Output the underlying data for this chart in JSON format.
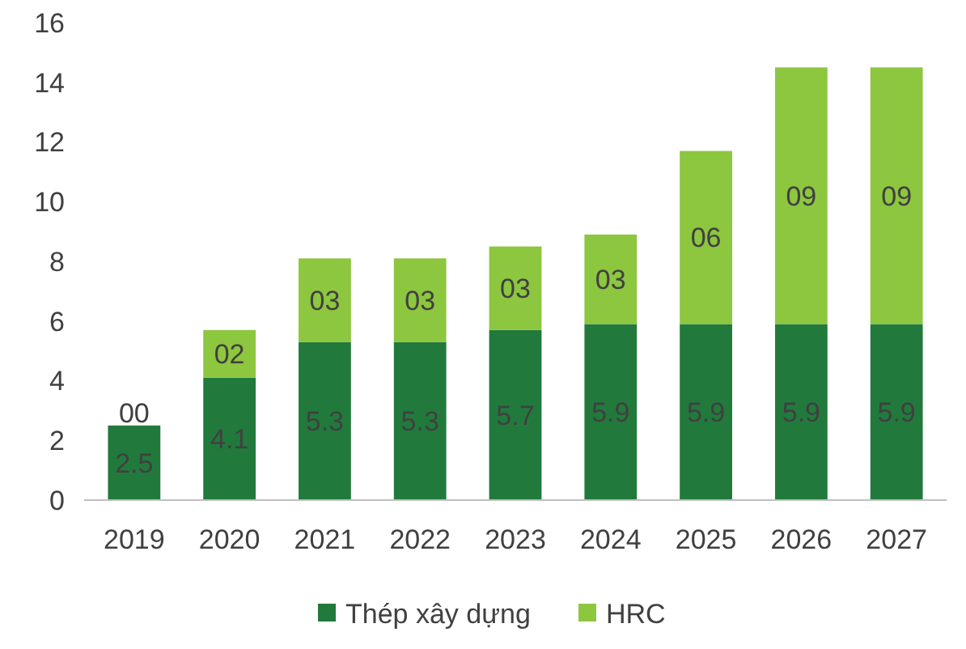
{
  "chart_data": {
    "type": "bar",
    "stacked": true,
    "categories": [
      "2019",
      "2020",
      "2021",
      "2022",
      "2023",
      "2024",
      "2025",
      "2026",
      "2027"
    ],
    "series": [
      {
        "name": "Thép xây dựng",
        "color": "#217a3c",
        "values": [
          2.5,
          4.1,
          5.3,
          5.3,
          5.7,
          5.9,
          5.9,
          5.9,
          5.9
        ],
        "value_labels": [
          "2.5",
          "4.1",
          "5.3",
          "5.3",
          "5.7",
          "5.9",
          "5.9",
          "5.9",
          "5.9"
        ]
      },
      {
        "name": "HRC",
        "color": "#8dc63f",
        "values": [
          0,
          1.6,
          2.8,
          2.8,
          2.8,
          3.0,
          5.8,
          8.6,
          8.6
        ],
        "value_labels": [
          "00",
          "02",
          "03",
          "03",
          "03",
          "03",
          "06",
          "09",
          "09"
        ]
      }
    ],
    "ylim": [
      0,
      16
    ],
    "yticks": [
      0,
      2,
      4,
      6,
      8,
      10,
      12,
      14,
      16
    ],
    "grid": false,
    "legend": "bottom"
  }
}
